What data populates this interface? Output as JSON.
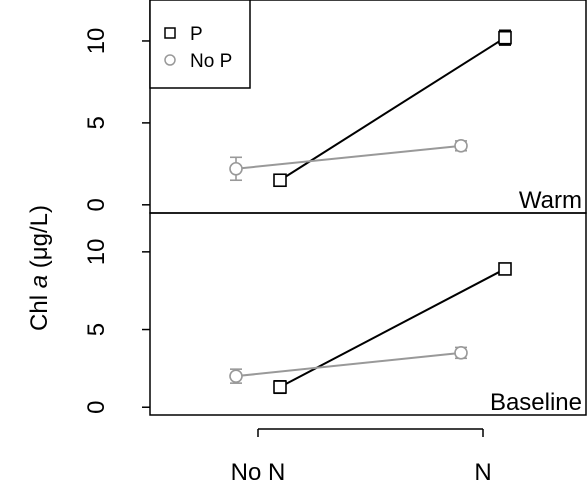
{
  "chart_data": {
    "type": "line",
    "ylabel_prefix": "Chl ",
    "ylabel_italic": "a",
    "ylabel_suffix": " (μg/L)",
    "categories": [
      "No N",
      "N"
    ],
    "legend": {
      "placement": "top-left",
      "entries": [
        {
          "label": "P",
          "marker": "square",
          "color": "#000000"
        },
        {
          "label": "No P",
          "marker": "circle",
          "color": "#999999"
        }
      ]
    },
    "yticks": [
      0,
      5,
      10
    ],
    "ylim": [
      -0.5,
      12.5
    ],
    "panels": [
      {
        "name": "Warm",
        "series": [
          {
            "name": "P",
            "marker": "square",
            "color": "#000000",
            "values": [
              1.5,
              10.2
            ],
            "err": [
              0.35,
              0.45
            ]
          },
          {
            "name": "No P",
            "marker": "circle",
            "color": "#999999",
            "values": [
              2.2,
              3.6
            ],
            "err": [
              0.7,
              0.3
            ]
          }
        ]
      },
      {
        "name": "Baseline",
        "series": [
          {
            "name": "P",
            "marker": "square",
            "color": "#000000",
            "values": [
              1.3,
              8.9
            ],
            "err": [
              0.4,
              0.35
            ]
          },
          {
            "name": "No P",
            "marker": "circle",
            "color": "#999999",
            "values": [
              2.0,
              3.5
            ],
            "err": [
              0.45,
              0.35
            ]
          }
        ]
      }
    ]
  }
}
